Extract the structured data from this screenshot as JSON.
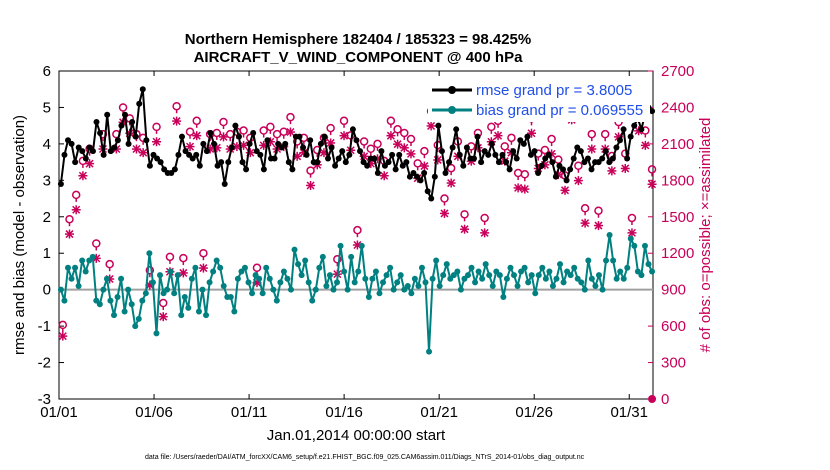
{
  "chart_data": {
    "type": "line",
    "title": "Northern Hemisphere 182404 / 185323 = 98.425%",
    "subtitle": "AIRCRAFT_V_WIND_COMPONENT @ 400 hPa",
    "xlabel": "Jan.01,2014 00:00:00 start",
    "ylabel": "rmse and bias (model - observation)",
    "ylabel_right": "# of obs: o=possible; ×=assimilated",
    "footer": "data file: /Users/raeder/DAI/ATM_forcXX/CAM6_setup/f.e21.FHIST_BGC.f09_025.CAM6assim.011/Diags_NTrS_2014-01/obs_diag_output.nc",
    "xlim": [
      0,
      31.25
    ],
    "ylim": [
      -3,
      6
    ],
    "ylim_right": [
      0,
      2700
    ],
    "x_ticks": [
      0,
      5,
      10,
      15,
      20,
      25,
      30
    ],
    "x_tick_labels": [
      "01/01",
      "01/06",
      "01/11",
      "01/16",
      "01/21",
      "01/26",
      "01/31"
    ],
    "y_ticks": [
      "-3",
      "-2",
      "-1",
      "0",
      "1",
      "2",
      "3",
      "4",
      "5",
      "6"
    ],
    "y_ticks_right": [
      "0",
      "300",
      "600",
      "900",
      "1200",
      "1500",
      "1800",
      "2100",
      "2400",
      "2700"
    ],
    "legend": {
      "location": "top-right",
      "entries": [
        "rmse grand pr = 3.8005",
        "bias grand pr = 0.069555"
      ]
    },
    "colors": {
      "rmse": "#000000",
      "bias": "#008080",
      "obs": "#c8005a",
      "zero_line": "#a0a0a0"
    },
    "series": [
      {
        "name": "rmse grand pr = 3.8005",
        "marker": "filled-circle",
        "values": [
          2.9,
          3.7,
          4.1,
          4.0,
          3.5,
          3.9,
          3.8,
          3.6,
          3.9,
          3.8,
          4.6,
          4.3,
          3.7,
          4.8,
          3.8,
          3.9,
          4.1,
          4.5,
          4.8,
          4.0,
          4.6,
          4.2,
          5.1,
          5.5,
          4.1,
          3.4,
          3.7,
          3.6,
          3.5,
          3.3,
          3.2,
          3.2,
          3.3,
          3.7,
          4.2,
          3.8,
          3.7,
          3.6,
          3.7,
          3.4,
          4.0,
          3.8,
          4.3,
          4.0,
          3.4,
          3.5,
          2.9,
          3.5,
          3.9,
          4.5,
          4.2,
          3.5,
          3.3,
          4.0,
          4.3,
          3.8,
          3.7,
          3.3,
          4.1,
          3.6,
          3.6,
          4.0,
          3.9,
          4.0,
          3.5,
          3.3,
          4.2,
          4.2,
          3.9,
          3.7,
          4.1,
          3.5,
          3.5,
          4.0,
          4.2,
          3.6,
          3.9,
          3.4,
          3.6,
          3.8,
          3.5,
          3.7,
          4.4,
          4.1,
          3.8,
          3.5,
          3.4,
          3.6,
          3.6,
          3.2,
          3.8,
          3.4,
          3.5,
          3.7,
          3.3,
          3.7,
          3.4,
          3.5,
          3.1,
          3.2,
          3.1,
          3.0,
          3.2,
          2.7,
          2.5,
          3.1,
          4.5,
          3.8,
          3.2,
          3.5,
          3.9,
          4.4,
          3.7,
          3.4,
          3.9,
          3.6,
          3.6,
          4.2,
          3.5,
          3.8,
          3.7,
          4.0,
          3.7,
          3.5,
          3.7,
          3.5,
          3.3,
          3.8,
          3.6,
          4.1,
          4.0,
          4.2,
          3.7,
          3.8,
          3.2,
          3.4,
          3.6,
          3.7,
          3.5,
          3.1,
          3.4,
          3.3,
          3.0,
          3.3,
          3.6,
          3.9,
          3.8,
          3.5,
          3.6,
          3.3,
          3.5,
          3.5,
          3.6,
          3.8,
          3.5,
          3.6,
          3.9,
          4.1,
          4.4,
          3.6,
          4.2,
          4.5,
          4.7,
          4.4,
          4.8,
          5.0,
          4.9
        ]
      },
      {
        "name": "bias grand pr = 0.069555",
        "marker": "filled-circle",
        "values": [
          0.0,
          -0.3,
          0.6,
          0.3,
          0.6,
          0.1,
          0.8,
          0.5,
          0.8,
          0.9,
          -0.3,
          -0.4,
          0.0,
          0.3,
          -0.3,
          -0.7,
          -0.2,
          0.3,
          -0.6,
          0.0,
          -0.4,
          -1.0,
          -0.8,
          -0.3,
          -0.1,
          1.0,
          0.2,
          -1.2,
          0.4,
          -0.1,
          0.0,
          0.5,
          -0.1,
          0.4,
          -0.7,
          -0.2,
          -0.5,
          0.3,
          0.6,
          -0.6,
          0.0,
          -0.7,
          0.2,
          0.5,
          0.8,
          0.6,
          0.1,
          -0.2,
          -0.2,
          -0.6,
          0.3,
          0.5,
          0.6,
          0.2,
          -0.1,
          0.4,
          0.3,
          -0.1,
          0.6,
          0.3,
          0.0,
          -0.3,
          0.2,
          0.5,
          0.3,
          0.0,
          1.1,
          0.7,
          0.4,
          0.8,
          0.2,
          -0.3,
          0.0,
          0.6,
          0.9,
          0.1,
          0.4,
          0.0,
          0.2,
          1.2,
          0.5,
          0.0,
          0.9,
          0.2,
          0.5,
          1.2,
          0.3,
          -0.2,
          0.3,
          0.5,
          -0.1,
          0.2,
          0.4,
          0.6,
          0.0,
          0.2,
          0.4,
          0.0,
          0.1,
          -0.1,
          0.3,
          0.1,
          0.6,
          0.2,
          -1.7,
          0.3,
          0.8,
          0.1,
          0.4,
          0.7,
          0.3,
          0.4,
          0.5,
          0.0,
          0.3,
          0.4,
          0.6,
          0.2,
          0.5,
          0.3,
          0.7,
          0.4,
          0.1,
          0.5,
          0.4,
          -0.2,
          0.3,
          0.6,
          0.4,
          0.1,
          0.5,
          0.6,
          0.2,
          0.4,
          -0.1,
          0.4,
          0.6,
          0.3,
          0.5,
          0.1,
          0.3,
          0.7,
          0.2,
          0.5,
          0.4,
          0.6,
          0.3,
          0.2,
          0.0,
          0.8,
          0.3,
          0.1,
          0.4,
          0.0,
          0.8,
          1.5,
          0.8,
          0.3,
          0.5,
          0.3,
          0.6,
          1.4,
          1.2,
          0.5,
          0.4,
          1.2,
          0.7,
          0.5
        ]
      },
      {
        "name": "possible",
        "marker": "circle",
        "axis": "right",
        "values": [
          610,
          1480,
          1680,
          1960,
          2060,
          1280,
          2180,
          1110,
          2180,
          2400,
          2310,
          2180,
          2150,
          1060,
          2240,
          790,
          1170,
          2410,
          1160,
          2200,
          2290,
          1200,
          2180,
          2190,
          2280,
          2180,
          2200,
          2210,
          2150,
          1080,
          2210,
          2240,
          2180,
          2200,
          2320,
          2120,
          2150,
          1880,
          2050,
          2150,
          2230,
          1150,
          2290,
          2170,
          1390,
          2120,
          2060,
          2100,
          1960,
          2290,
          2220,
          2190,
          2140,
          1940,
          2040,
          2370,
          2090,
          1650,
          1900,
          2120,
          1520,
          2080,
          2190,
          1490,
          2240,
          2290,
          2080,
          2150,
          1860,
          1850,
          2310,
          2020,
          2050,
          2140,
          1970,
          1840,
          2420,
          1920,
          1570,
          2180,
          1550,
          2180,
          2000,
          2280,
          2020,
          1490,
          2330,
          2210,
          1890
        ]
      },
      {
        "name": "assimilated",
        "marker": "asterisk",
        "axis": "right",
        "values": [
          600,
          1440,
          1640,
          1920,
          2020,
          1240,
          2140,
          1070,
          2140,
          2360,
          2270,
          2140,
          2110,
          1020,
          2200,
          760,
          1130,
          2370,
          1120,
          2160,
          2250,
          1160,
          2140,
          2150,
          2240,
          2140,
          2160,
          2170,
          2110,
          1040,
          2170,
          2200,
          2140,
          2160,
          2280,
          2080,
          2110,
          1840,
          2010,
          2110,
          2190,
          1110,
          2250,
          2130,
          1350,
          2080,
          2020,
          2060,
          1920,
          2250,
          2180,
          2150,
          2100,
          1900,
          2000,
          2330,
          2050,
          1610,
          1860,
          2080,
          1480,
          2040,
          2150,
          1450,
          2200,
          2250,
          2040,
          2110,
          1820,
          1810,
          2270,
          1980,
          2010,
          2100,
          1930,
          1800,
          2380,
          1880,
          1530,
          2140,
          1510,
          2140,
          1960,
          2240,
          1980,
          1450,
          2290,
          2170,
          1850
        ]
      }
    ]
  }
}
